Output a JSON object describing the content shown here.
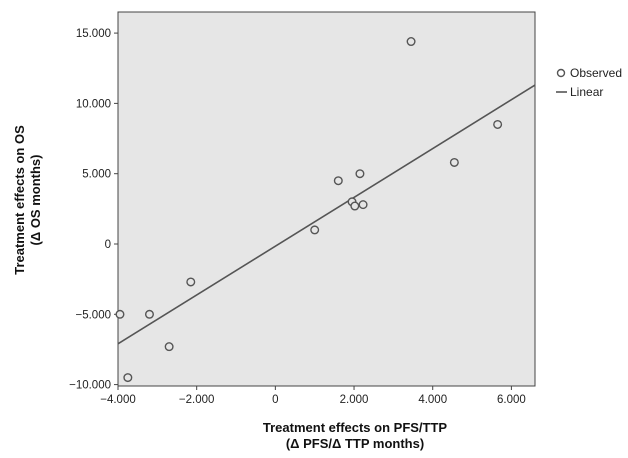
{
  "chart_data": {
    "type": "scatter",
    "title": "",
    "xlabel_line1": "Treatment effects on PFS/TTP",
    "xlabel_line2": "(Δ PFS/Δ TTP months)",
    "ylabel_line1": "Treatment effects on OS",
    "ylabel_line2": "(Δ OS months)",
    "xlim": [
      -4000,
      6600
    ],
    "ylim": [
      -10100,
      16500
    ],
    "x_ticks": [
      -4000,
      -2000,
      0,
      2000,
      4000,
      6000
    ],
    "x_tick_labels": [
      "−4.000",
      "−2.000",
      "0",
      "2.000",
      "4.000",
      "6.000"
    ],
    "y_ticks": [
      -10000,
      -5000,
      0,
      5000,
      10000,
      15000
    ],
    "y_tick_labels": [
      "−10.000",
      "−5.000",
      "0",
      "5.000",
      "10.000",
      "15.000"
    ],
    "grid": false,
    "legend_position": "right",
    "series": [
      {
        "name": "Observed",
        "kind": "points",
        "x": [
          -3950,
          -3750,
          -3200,
          -2700,
          -2150,
          1000,
          1600,
          1950,
          2020,
          2150,
          2230,
          3450,
          4550,
          5650
        ],
        "y": [
          -5000,
          -9500,
          -5000,
          -7300,
          -2700,
          1000,
          4500,
          3000,
          2700,
          5000,
          2800,
          14400,
          5800,
          8500
        ]
      },
      {
        "name": "Linear",
        "kind": "line",
        "x": [
          -4000,
          6600
        ],
        "y": [
          -7100,
          11300
        ]
      }
    ]
  },
  "colors": {
    "plot_background": "#e6e6e6",
    "marker_edge": "#555555",
    "line": "#555555"
  }
}
